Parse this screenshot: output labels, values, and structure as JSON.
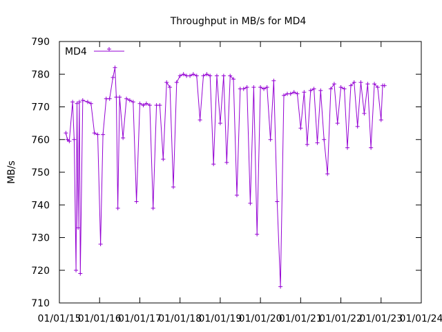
{
  "chart_data": {
    "type": "line",
    "title": "Throughput in MB/s for MD4",
    "xlabel": "",
    "ylabel": "MB/s",
    "ylim": [
      710,
      790
    ],
    "yticks": [
      710,
      720,
      730,
      740,
      750,
      760,
      770,
      780,
      790
    ],
    "xlim": [
      "2015-01-01",
      "2024-01-01"
    ],
    "xticks": [
      "01/01/15",
      "01/01/16",
      "01/01/17",
      "01/01/18",
      "01/01/19",
      "01/01/20",
      "01/01/21",
      "01/01/22",
      "01/01/23",
      "01/01/24"
    ],
    "grid": false,
    "legend": {
      "position": "top-left"
    },
    "series": [
      {
        "name": "MD4",
        "color": "#9400d3",
        "marker": "plus",
        "points": [
          [
            "2015-03-01",
            762
          ],
          [
            "2015-03-15",
            760
          ],
          [
            "2015-04-01",
            759.5
          ],
          [
            "2015-05-01",
            771.5
          ],
          [
            "2015-05-15",
            760
          ],
          [
            "2015-06-01",
            720
          ],
          [
            "2015-06-10",
            771
          ],
          [
            "2015-06-20",
            733
          ],
          [
            "2015-07-01",
            771.5
          ],
          [
            "2015-07-10",
            719
          ],
          [
            "2015-08-01",
            772
          ],
          [
            "2015-09-15",
            771.5
          ],
          [
            "2015-10-15",
            771
          ],
          [
            "2015-11-15",
            762
          ],
          [
            "2015-12-15",
            761.5
          ],
          [
            "2016-01-10",
            728
          ],
          [
            "2016-02-01",
            761.5
          ],
          [
            "2016-03-01",
            772.5
          ],
          [
            "2016-04-01",
            772.5
          ],
          [
            "2016-05-01",
            779
          ],
          [
            "2016-05-20",
            782
          ],
          [
            "2016-06-01",
            773
          ],
          [
            "2016-06-15",
            739
          ],
          [
            "2016-07-01",
            773
          ],
          [
            "2016-08-01",
            760.5
          ],
          [
            "2016-09-01",
            772.5
          ],
          [
            "2016-10-01",
            772
          ],
          [
            "2016-11-01",
            771.5
          ],
          [
            "2016-12-01",
            741
          ],
          [
            "2017-01-01",
            771
          ],
          [
            "2017-02-01",
            770.5
          ],
          [
            "2017-03-01",
            771
          ],
          [
            "2017-04-01",
            770.5
          ],
          [
            "2017-05-01",
            739
          ],
          [
            "2017-06-01",
            770.5
          ],
          [
            "2017-07-01",
            770.5
          ],
          [
            "2017-08-01",
            754
          ],
          [
            "2017-09-01",
            777.5
          ],
          [
            "2017-10-01",
            776
          ],
          [
            "2017-11-01",
            745.5
          ],
          [
            "2017-12-01",
            777.5
          ],
          [
            "2018-01-01",
            779.5
          ],
          [
            "2018-02-01",
            780
          ],
          [
            "2018-03-01",
            779.5
          ],
          [
            "2018-04-01",
            779.5
          ],
          [
            "2018-05-01",
            780
          ],
          [
            "2018-06-01",
            779.5
          ],
          [
            "2018-07-01",
            766
          ],
          [
            "2018-08-01",
            779.5
          ],
          [
            "2018-09-01",
            780
          ],
          [
            "2018-10-01",
            779.5
          ],
          [
            "2018-11-01",
            752.5
          ],
          [
            "2018-12-01",
            779.5
          ],
          [
            "2019-01-01",
            765
          ],
          [
            "2019-02-01",
            779.5
          ],
          [
            "2019-03-01",
            753
          ],
          [
            "2019-04-01",
            779.5
          ],
          [
            "2019-05-01",
            778.5
          ],
          [
            "2019-06-01",
            743
          ],
          [
            "2019-07-01",
            775.5
          ],
          [
            "2019-08-01",
            775.5
          ],
          [
            "2019-09-01",
            776
          ],
          [
            "2019-10-01",
            740.5
          ],
          [
            "2019-11-01",
            776
          ],
          [
            "2019-12-01",
            731
          ],
          [
            "2020-01-01",
            776
          ],
          [
            "2020-02-01",
            775.5
          ],
          [
            "2020-03-01",
            776
          ],
          [
            "2020-04-01",
            760
          ],
          [
            "2020-05-01",
            778
          ],
          [
            "2020-06-01",
            741
          ],
          [
            "2020-07-01",
            715
          ],
          [
            "2020-08-01",
            773.5
          ],
          [
            "2020-09-01",
            774
          ],
          [
            "2020-10-01",
            774
          ],
          [
            "2020-11-01",
            774.5
          ],
          [
            "2020-12-01",
            774
          ],
          [
            "2021-01-01",
            763.5
          ],
          [
            "2021-02-01",
            774.5
          ],
          [
            "2021-03-01",
            758.5
          ],
          [
            "2021-04-01",
            775
          ],
          [
            "2021-05-01",
            775.5
          ],
          [
            "2021-06-01",
            759
          ],
          [
            "2021-07-01",
            775
          ],
          [
            "2021-08-01",
            760
          ],
          [
            "2021-09-01",
            749.5
          ],
          [
            "2021-10-01",
            775.5
          ],
          [
            "2021-11-01",
            777
          ],
          [
            "2021-12-01",
            765
          ],
          [
            "2022-01-01",
            776
          ],
          [
            "2022-02-01",
            775.5
          ],
          [
            "2022-03-01",
            757.5
          ],
          [
            "2022-04-01",
            776.5
          ],
          [
            "2022-05-01",
            777.5
          ],
          [
            "2022-06-01",
            764
          ],
          [
            "2022-07-01",
            777.5
          ],
          [
            "2022-08-01",
            768
          ],
          [
            "2022-09-01",
            777
          ],
          [
            "2022-10-01",
            757.5
          ],
          [
            "2022-11-01",
            777
          ],
          [
            "2022-12-01",
            776
          ],
          [
            "2023-01-01",
            766
          ],
          [
            "2023-01-15",
            776.5
          ],
          [
            "2023-02-01",
            776.5
          ]
        ]
      }
    ]
  }
}
